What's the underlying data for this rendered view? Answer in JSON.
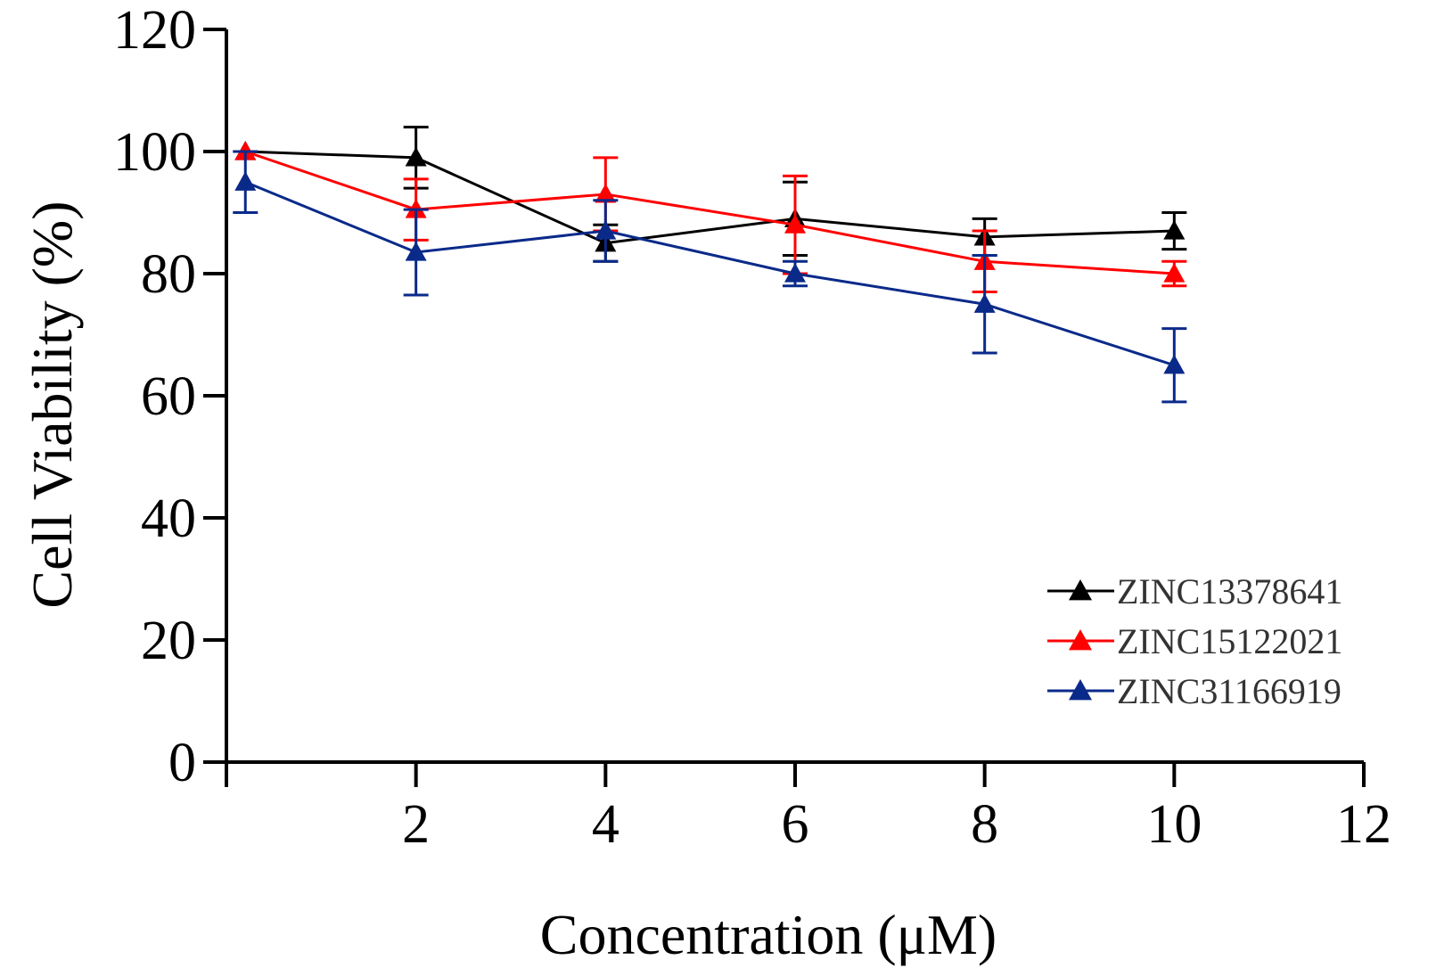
{
  "chart_data": {
    "type": "line",
    "title": "",
    "xlabel": "Concentration (μM)",
    "ylabel": "Cell Viability (%)",
    "xlim": [
      0,
      12
    ],
    "ylim": [
      0,
      120
    ],
    "xticks": [
      2,
      4,
      6,
      8,
      10,
      12
    ],
    "yticks": [
      0,
      20,
      40,
      60,
      80,
      100,
      120
    ],
    "grid": false,
    "legend_position": "bottom-right",
    "x": [
      0.2,
      2,
      4,
      6,
      8,
      10
    ],
    "series": [
      {
        "name": "ZINC13378641",
        "color": "#000000",
        "marker": "triangle",
        "values": [
          100,
          99,
          85,
          89,
          86,
          87
        ],
        "errors": [
          0,
          5,
          3,
          6,
          3,
          3
        ]
      },
      {
        "name": "ZINC15122021",
        "color": "#ff0000",
        "marker": "triangle",
        "values": [
          100,
          90.5,
          93,
          88,
          82,
          80
        ],
        "errors": [
          0,
          5,
          6,
          8,
          5,
          2
        ]
      },
      {
        "name": "ZINC31166919",
        "color": "#0a2a8a",
        "marker": "triangle",
        "values": [
          95,
          83.5,
          87,
          80,
          75,
          65
        ],
        "errors": [
          5,
          7,
          5,
          2,
          8,
          6
        ]
      }
    ]
  }
}
